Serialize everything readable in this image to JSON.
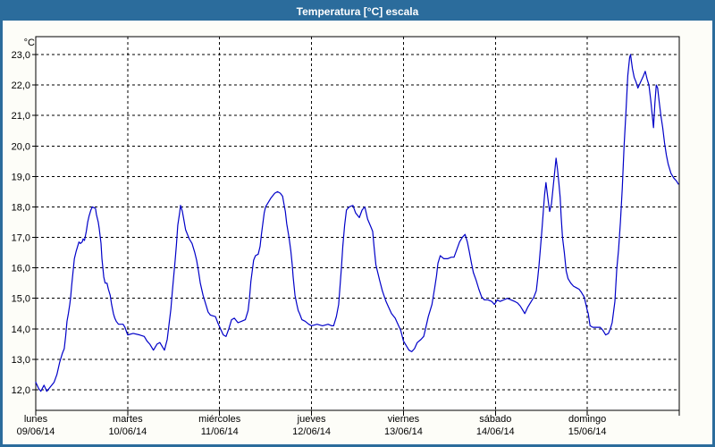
{
  "window": {
    "title": "Temperatura [°C] escala"
  },
  "colors": {
    "frame_blue": "#2B6C9C",
    "title_text": "#FFFFFF",
    "background": "#FDFDF8",
    "plot_background": "#FFFFFF",
    "grid": "#000000",
    "axis_text": "#000000",
    "line": "#0000C8"
  },
  "chart_data": {
    "type": "line",
    "title": "Temperatura [°C] escala",
    "unit_label": "°C",
    "ylabel": "",
    "xlabel": "",
    "ylim": [
      12.0,
      23.0
    ],
    "grid": "dashed",
    "legend": "none",
    "y_ticks": [
      {
        "value": 23.0,
        "label": "23,0"
      },
      {
        "value": 22.0,
        "label": "22,0"
      },
      {
        "value": 21.0,
        "label": "21,0"
      },
      {
        "value": 20.0,
        "label": "20,0"
      },
      {
        "value": 19.0,
        "label": "19,0"
      },
      {
        "value": 18.0,
        "label": "18,0"
      },
      {
        "value": 17.0,
        "label": "17,0"
      },
      {
        "value": 16.0,
        "label": "16,0"
      },
      {
        "value": 15.0,
        "label": "15,0"
      },
      {
        "value": 14.0,
        "label": "14,0"
      },
      {
        "value": 13.0,
        "label": "13,0"
      },
      {
        "value": 12.0,
        "label": "12,0"
      }
    ],
    "x_categories": [
      {
        "day": "lunes",
        "date": "09/06/14"
      },
      {
        "day": "martes",
        "date": "10/06/14"
      },
      {
        "day": "miércoles",
        "date": "11/06/14"
      },
      {
        "day": "jueves",
        "date": "12/06/14"
      },
      {
        "day": "viernes",
        "date": "13/06/14"
      },
      {
        "day": "sábado",
        "date": "14/06/14"
      },
      {
        "day": "domingo",
        "date": "15/06/14"
      }
    ],
    "series": [
      {
        "name": "Temperatura",
        "color": "#0000C8",
        "points": [
          [
            0.0,
            12.25
          ],
          [
            0.03,
            12.05
          ],
          [
            0.055,
            11.95
          ],
          [
            0.09,
            12.15
          ],
          [
            0.12,
            11.95
          ],
          [
            0.16,
            12.1
          ],
          [
            0.2,
            12.25
          ],
          [
            0.23,
            12.5
          ],
          [
            0.26,
            12.9
          ],
          [
            0.29,
            13.2
          ],
          [
            0.31,
            13.35
          ],
          [
            0.325,
            13.75
          ],
          [
            0.34,
            14.25
          ],
          [
            0.355,
            14.5
          ],
          [
            0.37,
            14.8
          ],
          [
            0.38,
            15.05
          ],
          [
            0.39,
            15.4
          ],
          [
            0.4,
            15.7
          ],
          [
            0.41,
            16.0
          ],
          [
            0.42,
            16.3
          ],
          [
            0.44,
            16.55
          ],
          [
            0.46,
            16.75
          ],
          [
            0.47,
            16.85
          ],
          [
            0.485,
            16.8
          ],
          [
            0.505,
            16.85
          ],
          [
            0.515,
            16.95
          ],
          [
            0.53,
            16.9
          ],
          [
            0.55,
            17.2
          ],
          [
            0.565,
            17.5
          ],
          [
            0.58,
            17.7
          ],
          [
            0.6,
            17.9
          ],
          [
            0.615,
            18.0
          ],
          [
            0.65,
            17.95
          ],
          [
            0.66,
            17.75
          ],
          [
            0.68,
            17.5
          ],
          [
            0.69,
            17.3
          ],
          [
            0.7,
            17.05
          ],
          [
            0.71,
            16.8
          ],
          [
            0.715,
            16.55
          ],
          [
            0.72,
            16.3
          ],
          [
            0.73,
            16.0
          ],
          [
            0.74,
            15.7
          ],
          [
            0.755,
            15.5
          ],
          [
            0.775,
            15.5
          ],
          [
            0.79,
            15.3
          ],
          [
            0.81,
            15.1
          ],
          [
            0.825,
            14.8
          ],
          [
            0.845,
            14.5
          ],
          [
            0.86,
            14.35
          ],
          [
            0.875,
            14.25
          ],
          [
            0.9,
            14.15
          ],
          [
            0.95,
            14.15
          ],
          [
            0.97,
            14.05
          ],
          [
            1.0,
            13.8
          ],
          [
            1.06,
            13.85
          ],
          [
            1.13,
            13.8
          ],
          [
            1.18,
            13.75
          ],
          [
            1.21,
            13.6
          ],
          [
            1.24,
            13.5
          ],
          [
            1.28,
            13.3
          ],
          [
            1.32,
            13.5
          ],
          [
            1.35,
            13.55
          ],
          [
            1.38,
            13.4
          ],
          [
            1.4,
            13.3
          ],
          [
            1.43,
            13.65
          ],
          [
            1.45,
            14.15
          ],
          [
            1.47,
            14.65
          ],
          [
            1.485,
            15.2
          ],
          [
            1.5,
            15.7
          ],
          [
            1.515,
            16.2
          ],
          [
            1.53,
            16.75
          ],
          [
            1.545,
            17.4
          ],
          [
            1.565,
            17.8
          ],
          [
            1.575,
            18.05
          ],
          [
            1.595,
            17.85
          ],
          [
            1.61,
            17.6
          ],
          [
            1.63,
            17.25
          ],
          [
            1.65,
            17.1
          ],
          [
            1.67,
            16.95
          ],
          [
            1.7,
            16.8
          ],
          [
            1.73,
            16.5
          ],
          [
            1.75,
            16.25
          ],
          [
            1.77,
            15.9
          ],
          [
            1.79,
            15.5
          ],
          [
            1.82,
            15.1
          ],
          [
            1.85,
            14.8
          ],
          [
            1.875,
            14.55
          ],
          [
            1.9,
            14.45
          ],
          [
            1.955,
            14.4
          ],
          [
            1.98,
            14.2
          ],
          [
            2.01,
            14.0
          ],
          [
            2.04,
            13.8
          ],
          [
            2.07,
            13.75
          ],
          [
            2.1,
            14.0
          ],
          [
            2.13,
            14.3
          ],
          [
            2.16,
            14.35
          ],
          [
            2.2,
            14.2
          ],
          [
            2.24,
            14.25
          ],
          [
            2.28,
            14.3
          ],
          [
            2.31,
            14.6
          ],
          [
            2.325,
            15.0
          ],
          [
            2.34,
            15.55
          ],
          [
            2.355,
            15.9
          ],
          [
            2.37,
            16.25
          ],
          [
            2.39,
            16.4
          ],
          [
            2.42,
            16.45
          ],
          [
            2.44,
            16.7
          ],
          [
            2.455,
            17.1
          ],
          [
            2.47,
            17.45
          ],
          [
            2.485,
            17.8
          ],
          [
            2.5,
            18.0
          ],
          [
            2.53,
            18.15
          ],
          [
            2.56,
            18.3
          ],
          [
            2.6,
            18.45
          ],
          [
            2.63,
            18.5
          ],
          [
            2.66,
            18.45
          ],
          [
            2.685,
            18.35
          ],
          [
            2.7,
            18.1
          ],
          [
            2.715,
            17.85
          ],
          [
            2.73,
            17.45
          ],
          [
            2.755,
            17.0
          ],
          [
            2.775,
            16.55
          ],
          [
            2.79,
            16.1
          ],
          [
            2.8,
            15.7
          ],
          [
            2.81,
            15.4
          ],
          [
            2.82,
            15.1
          ],
          [
            2.84,
            14.8
          ],
          [
            2.855,
            14.6
          ],
          [
            2.87,
            14.5
          ],
          [
            2.895,
            14.3
          ],
          [
            2.93,
            14.25
          ],
          [
            2.97,
            14.15
          ],
          [
            3.0,
            14.1
          ],
          [
            3.06,
            14.15
          ],
          [
            3.12,
            14.1
          ],
          [
            3.18,
            14.15
          ],
          [
            3.22,
            14.1
          ],
          [
            3.24,
            14.1
          ],
          [
            3.27,
            14.4
          ],
          [
            3.295,
            14.8
          ],
          [
            3.31,
            15.4
          ],
          [
            3.325,
            16.0
          ],
          [
            3.34,
            16.7
          ],
          [
            3.36,
            17.4
          ],
          [
            3.38,
            17.9
          ],
          [
            3.41,
            18.0
          ],
          [
            3.45,
            18.05
          ],
          [
            3.48,
            17.8
          ],
          [
            3.52,
            17.65
          ],
          [
            3.55,
            17.9
          ],
          [
            3.58,
            18.0
          ],
          [
            3.61,
            17.6
          ],
          [
            3.645,
            17.35
          ],
          [
            3.665,
            17.2
          ],
          [
            3.68,
            16.7
          ],
          [
            3.7,
            16.1
          ],
          [
            3.72,
            15.85
          ],
          [
            3.74,
            15.6
          ],
          [
            3.77,
            15.25
          ],
          [
            3.81,
            14.9
          ],
          [
            3.84,
            14.7
          ],
          [
            3.87,
            14.5
          ],
          [
            3.91,
            14.35
          ],
          [
            3.94,
            14.15
          ],
          [
            3.97,
            13.95
          ],
          [
            4.0,
            13.6
          ],
          [
            4.03,
            13.45
          ],
          [
            4.06,
            13.3
          ],
          [
            4.09,
            13.25
          ],
          [
            4.12,
            13.35
          ],
          [
            4.15,
            13.55
          ],
          [
            4.19,
            13.65
          ],
          [
            4.22,
            13.75
          ],
          [
            4.24,
            14.0
          ],
          [
            4.27,
            14.4
          ],
          [
            4.31,
            14.8
          ],
          [
            4.34,
            15.35
          ],
          [
            4.36,
            15.75
          ],
          [
            4.375,
            16.15
          ],
          [
            4.4,
            16.4
          ],
          [
            4.44,
            16.3
          ],
          [
            4.48,
            16.3
          ],
          [
            4.52,
            16.35
          ],
          [
            4.55,
            16.35
          ],
          [
            4.58,
            16.6
          ],
          [
            4.61,
            16.85
          ],
          [
            4.64,
            17.0
          ],
          [
            4.67,
            17.1
          ],
          [
            4.695,
            16.85
          ],
          [
            4.715,
            16.55
          ],
          [
            4.74,
            16.15
          ],
          [
            4.76,
            15.85
          ],
          [
            4.79,
            15.6
          ],
          [
            4.82,
            15.3
          ],
          [
            4.85,
            15.05
          ],
          [
            4.88,
            14.95
          ],
          [
            4.92,
            14.95
          ],
          [
            4.96,
            14.9
          ],
          [
            4.99,
            14.8
          ],
          [
            5.02,
            14.95
          ],
          [
            5.05,
            14.9
          ],
          [
            5.09,
            14.95
          ],
          [
            5.13,
            15.0
          ],
          [
            5.17,
            14.95
          ],
          [
            5.21,
            14.9
          ],
          [
            5.24,
            14.85
          ],
          [
            5.27,
            14.75
          ],
          [
            5.3,
            14.6
          ],
          [
            5.32,
            14.5
          ],
          [
            5.35,
            14.7
          ],
          [
            5.39,
            14.9
          ],
          [
            5.42,
            15.05
          ],
          [
            5.445,
            15.25
          ],
          [
            5.46,
            15.65
          ],
          [
            5.475,
            16.1
          ],
          [
            5.49,
            16.65
          ],
          [
            5.505,
            17.2
          ],
          [
            5.52,
            17.8
          ],
          [
            5.535,
            18.4
          ],
          [
            5.55,
            18.8
          ],
          [
            5.57,
            18.3
          ],
          [
            5.59,
            17.85
          ],
          [
            5.61,
            18.1
          ],
          [
            5.63,
            18.7
          ],
          [
            5.65,
            19.3
          ],
          [
            5.66,
            19.6
          ],
          [
            5.675,
            19.25
          ],
          [
            5.69,
            18.8
          ],
          [
            5.705,
            18.3
          ],
          [
            5.715,
            17.7
          ],
          [
            5.73,
            17.0
          ],
          [
            5.75,
            16.5
          ],
          [
            5.77,
            15.9
          ],
          [
            5.79,
            15.65
          ],
          [
            5.82,
            15.5
          ],
          [
            5.85,
            15.4
          ],
          [
            5.88,
            15.35
          ],
          [
            5.91,
            15.3
          ],
          [
            5.935,
            15.2
          ],
          [
            5.965,
            15.05
          ],
          [
            5.985,
            14.8
          ],
          [
            6.0,
            14.6
          ],
          [
            6.01,
            14.5
          ],
          [
            6.03,
            14.1
          ],
          [
            6.06,
            14.05
          ],
          [
            6.1,
            14.05
          ],
          [
            6.14,
            14.05
          ],
          [
            6.17,
            13.95
          ],
          [
            6.2,
            13.8
          ],
          [
            6.23,
            13.85
          ],
          [
            6.25,
            14.0
          ],
          [
            6.27,
            14.2
          ],
          [
            6.3,
            14.9
          ],
          [
            6.32,
            15.95
          ],
          [
            6.34,
            16.6
          ],
          [
            6.36,
            17.5
          ],
          [
            6.38,
            18.6
          ],
          [
            6.4,
            20.0
          ],
          [
            6.42,
            21.1
          ],
          [
            6.44,
            22.3
          ],
          [
            6.46,
            22.9
          ],
          [
            6.47,
            23.0
          ],
          [
            6.49,
            22.55
          ],
          [
            6.51,
            22.25
          ],
          [
            6.53,
            22.1
          ],
          [
            6.55,
            21.9
          ],
          [
            6.58,
            22.1
          ],
          [
            6.61,
            22.3
          ],
          [
            6.63,
            22.45
          ],
          [
            6.65,
            22.2
          ],
          [
            6.67,
            22.0
          ],
          [
            6.69,
            21.5
          ],
          [
            6.71,
            20.9
          ],
          [
            6.72,
            20.6
          ],
          [
            6.735,
            21.4
          ],
          [
            6.75,
            22.0
          ],
          [
            6.765,
            21.9
          ],
          [
            6.78,
            21.5
          ],
          [
            6.8,
            21.0
          ],
          [
            6.82,
            20.6
          ],
          [
            6.84,
            20.1
          ],
          [
            6.86,
            19.7
          ],
          [
            6.88,
            19.4
          ],
          [
            6.91,
            19.1
          ],
          [
            6.94,
            18.95
          ],
          [
            6.97,
            18.85
          ],
          [
            6.99,
            18.75
          ]
        ]
      }
    ]
  }
}
